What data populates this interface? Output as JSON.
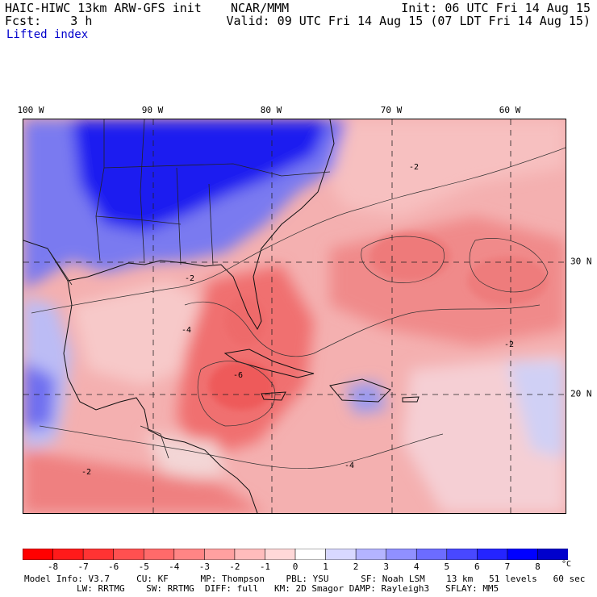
{
  "header": {
    "title": "HAIC-HIWC 13km ARW-GFS init    NCAR/MMM",
    "forecast": "Fcst:    3 h",
    "init": "Init: 06 UTC Fri 14 Aug 15",
    "valid": "Valid: 09 UTC Fri 14 Aug 15 (07 LDT Fri 14 Aug 15)",
    "variable": "Lifted index"
  },
  "map": {
    "longitude_labels": [
      "100 W",
      "90 W",
      "80 W",
      "70 W",
      "60 W"
    ],
    "latitude_labels": [
      "30 N",
      "20 N"
    ],
    "contour_labels": [
      "-2",
      "-4",
      "-6"
    ]
  },
  "colorbar": {
    "ticks": [
      "-8",
      "-7",
      "-6",
      "-5",
      "-4",
      "-3",
      "-2",
      "-1",
      "0",
      "1",
      "2",
      "3",
      "4",
      "5",
      "6",
      "7",
      "8"
    ],
    "unit": "°C",
    "colors": [
      "#ff0000",
      "#ff1a1a",
      "#ff3333",
      "#ff5050",
      "#ff6a6a",
      "#ff8585",
      "#ffa0a0",
      "#ffbcbc",
      "#ffd8d8",
      "#ffffff",
      "#d8d8ff",
      "#b4b4ff",
      "#9090ff",
      "#6c6cff",
      "#4848ff",
      "#2424ff",
      "#0000ff",
      "#0000cc"
    ]
  },
  "model_info": {
    "line1": "Model Info: V3.7     CU: KF      MP: Thompson    PBL: YSU      SF: Noah LSM    13 km   51 levels   60 sec",
    "line2": "LW: RRTMG    SW: RRTMG  DIFF: full   KM: 2D Smagor DAMP: Rayleigh3   SFLAY: MM5"
  }
}
